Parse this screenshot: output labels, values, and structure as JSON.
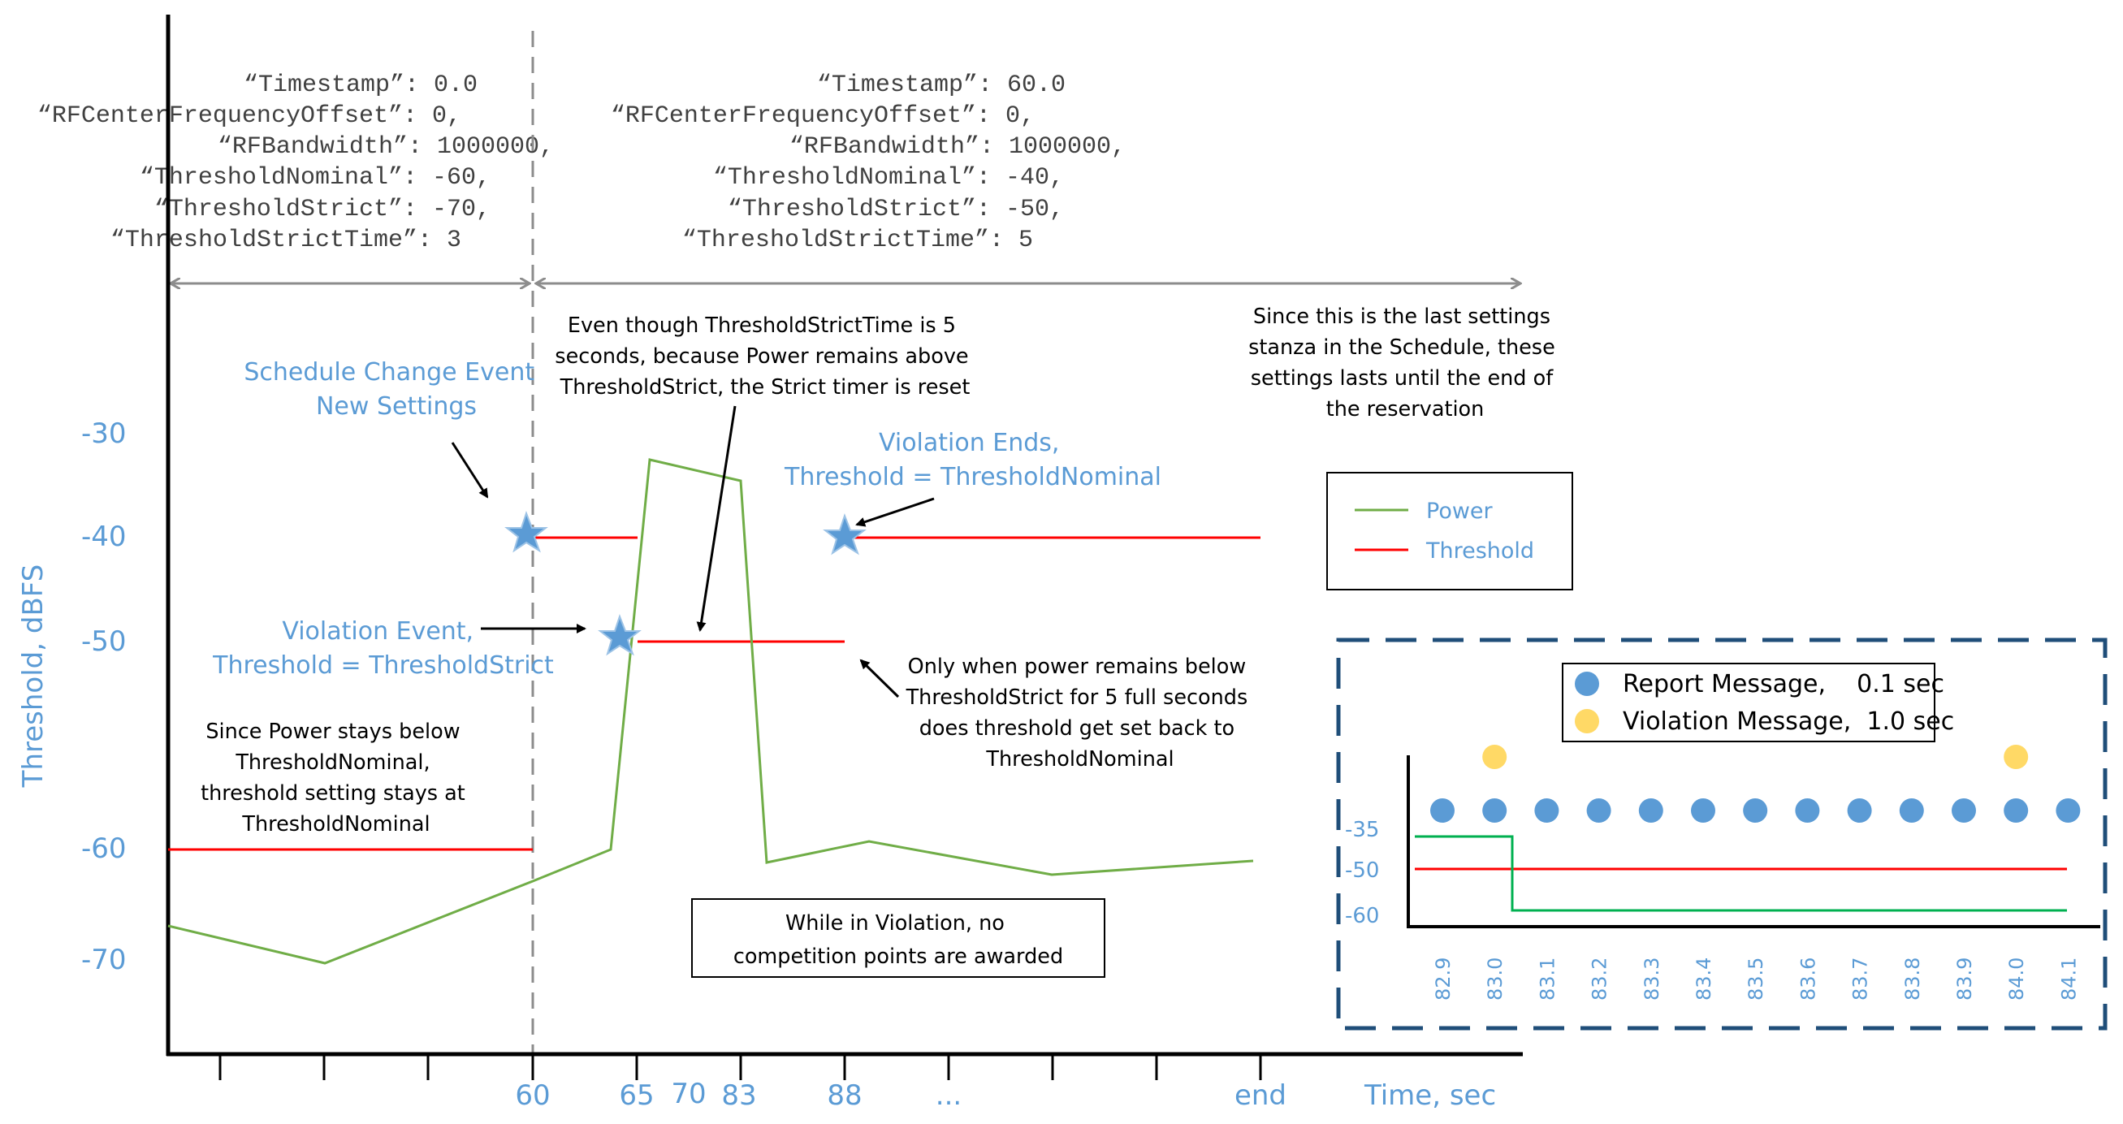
{
  "chart_data": {
    "type": "line",
    "ylabel": "Threshold, dBFS",
    "xlabel": "Time, sec",
    "y_ticks": [
      "-30",
      "-40",
      "-50",
      "-60",
      "-70"
    ],
    "x_ticks": [
      "60",
      "65",
      "70",
      "83",
      "88",
      "...",
      "end"
    ],
    "legend": {
      "power": "Power",
      "threshold": "Threshold"
    },
    "colors": {
      "power": "#70ad47",
      "threshold": "#ff0000",
      "accent": "#5b9bd5",
      "box": "#1f4e79"
    }
  },
  "settings": {
    "left": [
      "“Timestamp”: 0.0",
      "“RFCenterFrequencyOffset”: 0,",
      "“RFBandwidth”: 1000000,",
      "“ThresholdNominal”: -60,",
      "“ThresholdStrict”: -70,",
      "“ThresholdStrictTime”: 3"
    ],
    "right": [
      "“Timestamp”: 60.0",
      "“RFCenterFrequencyOffset”: 0,",
      "“RFBandwidth”: 1000000,",
      "“ThresholdNominal”: -40,",
      "“ThresholdStrict”: -50,",
      "“ThresholdStrictTime”: 5"
    ]
  },
  "annotations": {
    "schedule_change": [
      "Schedule Change Event",
      "New Settings"
    ],
    "violation_event": [
      "Violation Event,",
      "Threshold = ThresholdStrict"
    ],
    "violation_ends": [
      "Violation Ends,",
      "Threshold = ThresholdNominal"
    ],
    "strict_timer": [
      "Even though ThresholdStrictTime is 5",
      "seconds, because Power remains above",
      "ThresholdStrict, the Strict timer is reset"
    ],
    "last_stanza": [
      "Since this is the last settings",
      "stanza in the Schedule, these",
      "settings lasts until the end of",
      "the reservation"
    ],
    "below_nominal": [
      "Since Power stays below",
      "ThresholdNominal,",
      "threshold setting stays at",
      "ThresholdNominal"
    ],
    "only_when": [
      "Only when power remains below",
      "ThresholdStrict for 5 full seconds",
      "does threshold get set back to",
      "ThresholdNominal"
    ],
    "no_points": [
      "While in Violation, no",
      "competition points are awarded"
    ]
  },
  "inset": {
    "legend": {
      "report": "Report Message,    0.1 sec",
      "violation": "Violation Message,  1.0 sec"
    },
    "y_ticks": [
      "-35",
      "-50",
      "-60"
    ],
    "x_ticks": [
      "82.9",
      "83.0",
      "83.1",
      "83.2",
      "83.3",
      "83.4",
      "83.5",
      "83.6",
      "83.7",
      "83.8",
      "83.9",
      "84.0",
      "84.1"
    ],
    "violation_messages_at": [
      "83.0",
      "84.0"
    ],
    "colors": {
      "report": "#5b9bd5",
      "violation": "#ffd966"
    }
  }
}
